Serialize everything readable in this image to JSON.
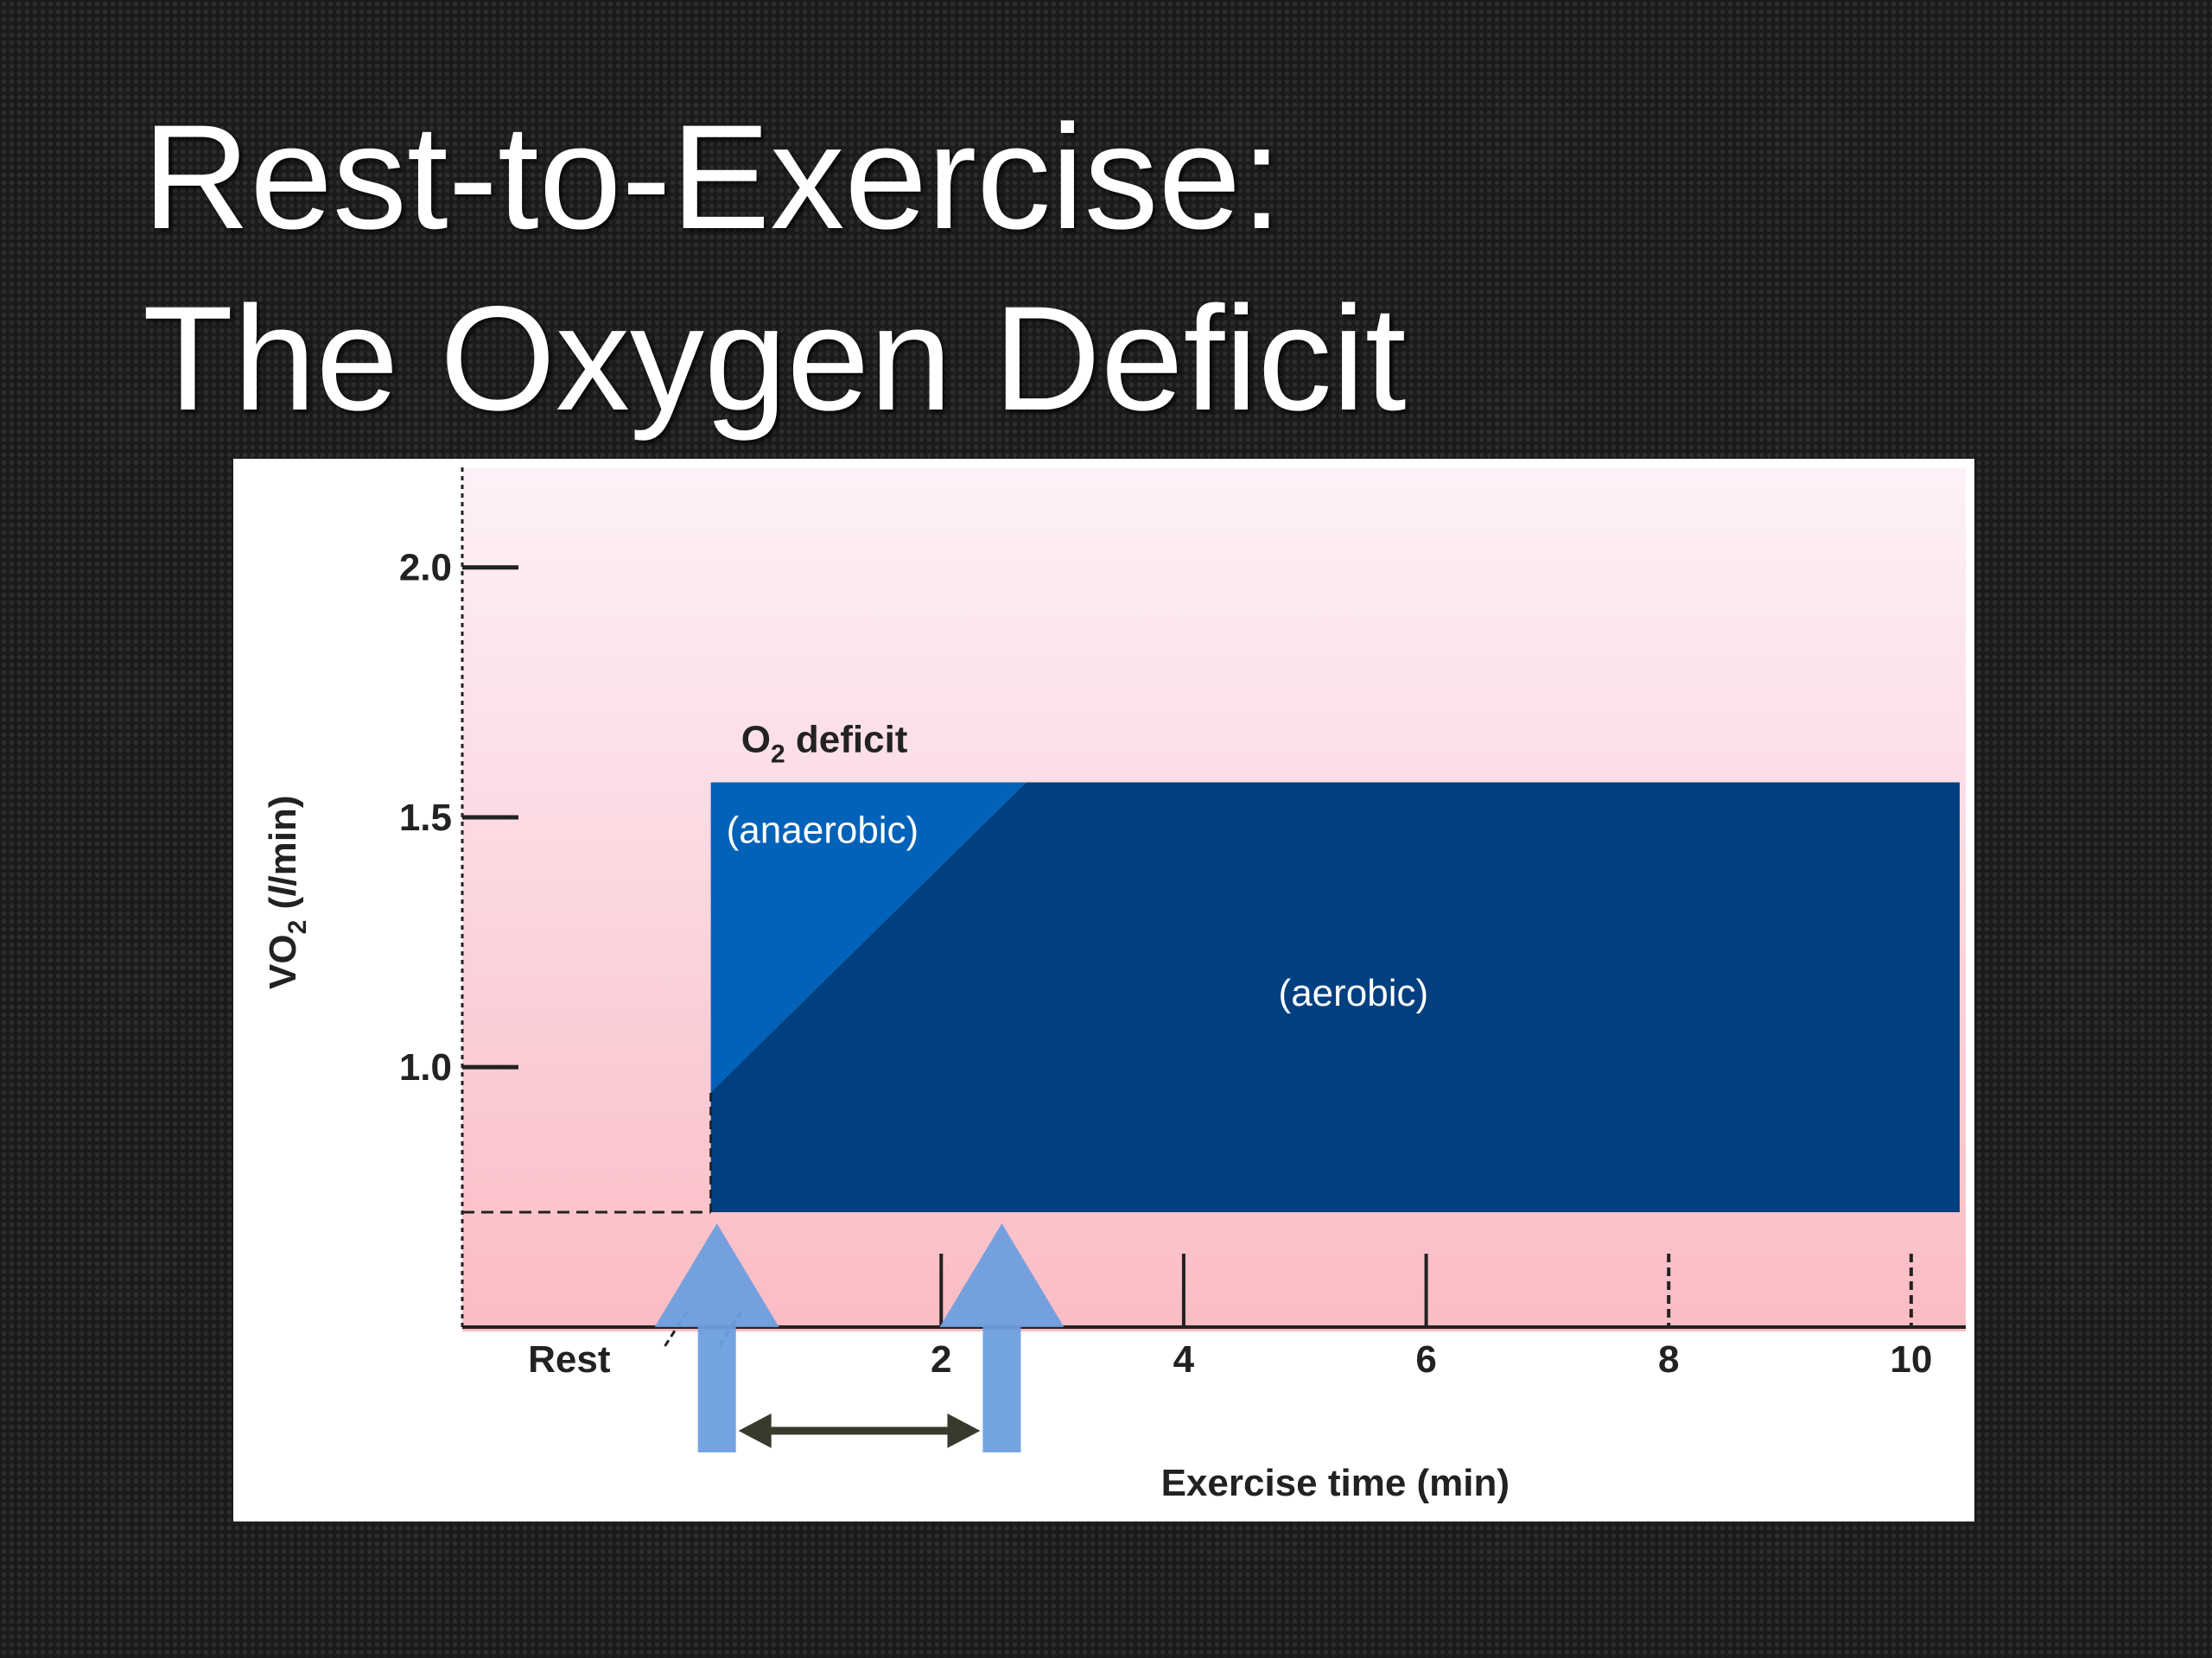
{
  "slide": {
    "title_line1": "Rest-to-Exercise:",
    "title_line2": "The Oxygen Deficit"
  },
  "chart_data": {
    "type": "area",
    "xlabel": "Exercise time (min)",
    "ylabel_main": "VO",
    "ylabel_sub": "2",
    "ylabel_open": " (",
    "ylabel_unit_italic": "l",
    "ylabel_unit_rest": "/min)",
    "x_ticks": [
      {
        "value": 0,
        "label": "Rest"
      },
      {
        "value": 2,
        "label": "2"
      },
      {
        "value": 4,
        "label": "4"
      },
      {
        "value": 6,
        "label": "6"
      },
      {
        "value": 8,
        "label": "8"
      },
      {
        "value": 10,
        "label": "10"
      }
    ],
    "y_ticks": [
      {
        "value": 1.0,
        "label": "1.0"
      },
      {
        "value": 1.5,
        "label": "1.5"
      },
      {
        "value": 2.0,
        "label": "2.0"
      }
    ],
    "xlim": [
      -1.95,
      10.45
    ],
    "ylim": [
      0.48,
      2.2
    ],
    "rest_vo2": 0.71,
    "exercise_start": 0.1,
    "exercise_end": 10.4,
    "steady_state_vo2": 1.57,
    "initial_aerobic_vo2": 0.95,
    "steady_state_reached_at": 2.7,
    "deficit_label_main": "O",
    "deficit_label_sub": "2",
    "deficit_label_rest": " deficit",
    "regions": [
      {
        "name": "(anaerobic)",
        "color": "#0062b8"
      },
      {
        "name": "(aerobic)",
        "color": "#003f80"
      }
    ],
    "arrows": [
      {
        "x": 0.15,
        "color": "#6d9edf"
      },
      {
        "x": 2.5,
        "color": "#6d9edf"
      }
    ],
    "interval": {
      "from": 0.15,
      "to": 2.5,
      "color": "#3a3a2c"
    },
    "grid": false,
    "legend": "none"
  }
}
